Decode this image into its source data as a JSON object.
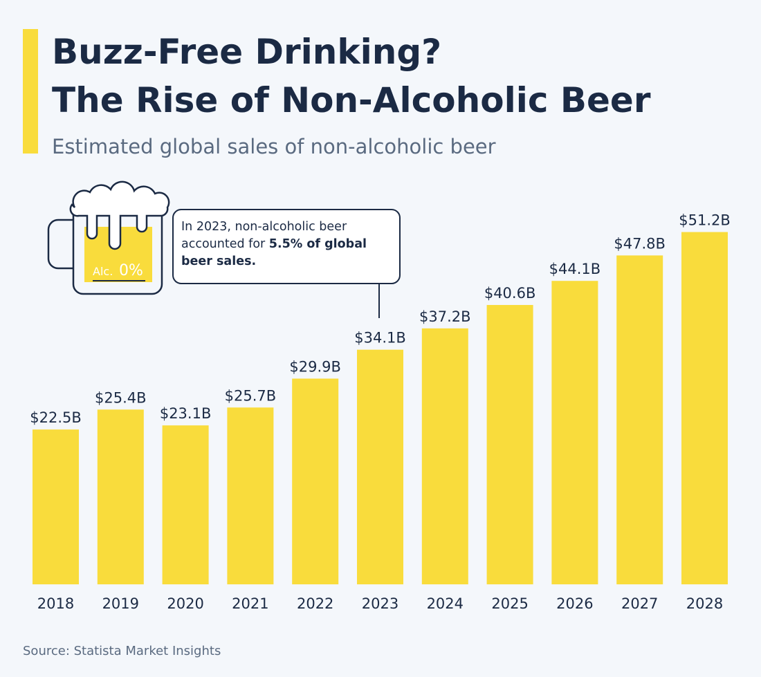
{
  "chart_data": {
    "type": "bar",
    "title": [
      "Buzz-Free Drinking?",
      "The Rise of Non-Alcoholic Beer"
    ],
    "subtitle": "Estimated global sales of non-alcoholic beer",
    "categories": [
      "2018",
      "2019",
      "2020",
      "2021",
      "2022",
      "2023",
      "2024",
      "2025",
      "2026",
      "2027",
      "2028"
    ],
    "values": [
      22.5,
      25.4,
      23.1,
      25.7,
      29.9,
      34.1,
      37.2,
      40.6,
      44.1,
      47.8,
      51.2
    ],
    "value_labels": [
      "$22.5B",
      "$25.4B",
      "$23.1B",
      "$25.7B",
      "$29.9B",
      "$34.1B",
      "$37.2B",
      "$40.6B",
      "$44.1B",
      "$47.8B",
      "$51.2B"
    ],
    "color": "#f9dc3c",
    "annotation": {
      "text": "In 2023, non-alcoholic beer accounted for ",
      "bold": "5.5% of global beer sales."
    },
    "icon_label": {
      "prefix": "Alc.",
      "value": "0%"
    },
    "source": "Source: Statista Market Insights"
  }
}
